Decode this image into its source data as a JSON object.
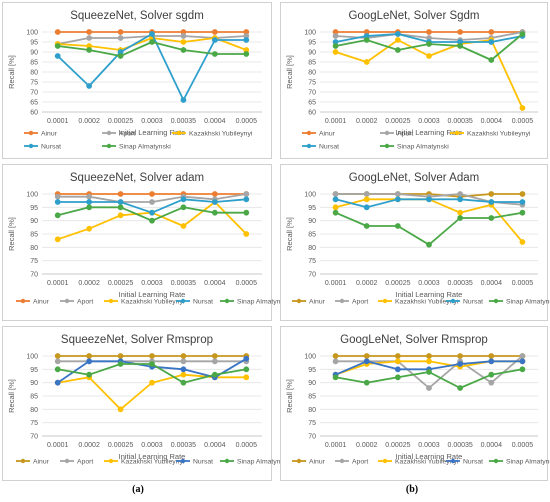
{
  "figure": {
    "label_a": "(a)",
    "label_b": "(b)"
  },
  "colors": {
    "Ainur": "#ED7D31",
    "Aport": "#A5A5A5",
    "Kazakhski Yubileynyi": "#FFC000",
    "Nursat": "#2E9FCB",
    "Sinap Almatynski": "#4AA847",
    "Ainur_alt": "#C7971E",
    "Nursat_alt": "#3A74C4"
  },
  "chart_data": [
    {
      "type": "line",
      "title": "SqueezeNet, Solver sgdm",
      "xlabel": "Initial Learning Rate",
      "ylabel": "Recall [%]",
      "categories": [
        "0.0001",
        "0.0002",
        "0.00025",
        "0.0003",
        "0.00035",
        "0.0004",
        "0.0005"
      ],
      "ylim": [
        60,
        100
      ],
      "yticks": [
        60,
        65,
        70,
        75,
        80,
        85,
        90,
        95,
        100
      ],
      "legend_position": "bottom",
      "series": [
        {
          "name": "Ainur",
          "values": [
            100,
            100,
            100,
            100,
            100,
            100,
            100
          ]
        },
        {
          "name": "Aport",
          "values": [
            94,
            97,
            97,
            98,
            98,
            97,
            98
          ]
        },
        {
          "name": "Kazakhski Yubileynyi",
          "values": [
            94,
            93,
            91,
            97,
            95,
            97,
            91
          ]
        },
        {
          "name": "Nursat",
          "values": [
            88,
            73,
            90,
            99,
            66,
            96,
            96
          ]
        },
        {
          "name": "Sinap Almatynski",
          "values": [
            93,
            91,
            88,
            95,
            91,
            89,
            89
          ]
        }
      ]
    },
    {
      "type": "line",
      "title": "GoogLeNet, Solver Sgdm",
      "xlabel": "Initial Learning Rate",
      "ylabel": "Recall [%]",
      "categories": [
        "0.0001",
        "0.0002",
        "0.00025",
        "0.0003",
        "0.00035",
        "0.0004",
        "0.0005"
      ],
      "ylim": [
        60,
        100
      ],
      "yticks": [
        60,
        65,
        70,
        75,
        80,
        85,
        90,
        95,
        100
      ],
      "legend_position": "bottom",
      "series": [
        {
          "name": "Ainur",
          "values": [
            100,
            100,
            100,
            100,
            100,
            100,
            100
          ]
        },
        {
          "name": "Aport",
          "values": [
            98,
            97,
            99,
            97,
            96,
            97,
            100
          ]
        },
        {
          "name": "Kazakhski Yubileynyi",
          "values": [
            90,
            85,
            96,
            88,
            94,
            96,
            62
          ]
        },
        {
          "name": "Nursat",
          "values": [
            95,
            98,
            99,
            95,
            95,
            95,
            98
          ]
        },
        {
          "name": "Sinap Almatynski",
          "values": [
            93,
            96,
            91,
            94,
            93,
            86,
            99
          ]
        }
      ]
    },
    {
      "type": "line",
      "title": "SqueezeNet, Solver adam",
      "xlabel": "Initial Learning Rate",
      "ylabel": "Recall [%]",
      "categories": [
        "0.0001",
        "0.0002",
        "0.00025",
        "0.0003",
        "0.00035",
        "0.0004",
        "0.0005"
      ],
      "ylim": [
        70,
        100
      ],
      "yticks": [
        70,
        75,
        80,
        85,
        90,
        95,
        100
      ],
      "legend_position": "bottom",
      "series": [
        {
          "name": "Ainur",
          "values": [
            100,
            100,
            100,
            100,
            100,
            100,
            100
          ]
        },
        {
          "name": "Aport",
          "values": [
            99,
            99,
            97,
            97,
            99,
            98,
            100
          ]
        },
        {
          "name": "Kazakhski Yubileynyi",
          "values": [
            83,
            87,
            92,
            93,
            88,
            97,
            85
          ]
        },
        {
          "name": "Nursat",
          "values": [
            97,
            97,
            97,
            93,
            98,
            97,
            98
          ]
        },
        {
          "name": "Sinap Almatynski",
          "values": [
            92,
            95,
            95,
            90,
            95,
            93,
            93
          ]
        }
      ]
    },
    {
      "type": "line",
      "title": "GoogLeNet, Solver Adam",
      "xlabel": "Initial Learning Rate",
      "ylabel": "Recall [%]",
      "categories": [
        "0.0001",
        "0.0002",
        "0.00025",
        "0.0003",
        "0.00035",
        "0.0004",
        "0.0005"
      ],
      "ylim": [
        70,
        100
      ],
      "yticks": [
        70,
        75,
        80,
        85,
        90,
        95,
        100
      ],
      "legend_position": "bottom",
      "series": [
        {
          "name": "Ainur",
          "values": [
            100,
            100,
            100,
            100,
            99,
            100,
            100
          ]
        },
        {
          "name": "Aport",
          "values": [
            100,
            100,
            100,
            99,
            100,
            97,
            96
          ]
        },
        {
          "name": "Kazakhski Yubileynyi",
          "values": [
            95,
            98,
            98,
            98,
            93,
            96,
            82
          ]
        },
        {
          "name": "Nursat",
          "values": [
            98,
            95,
            98,
            98,
            98,
            97,
            97
          ]
        },
        {
          "name": "Sinap Almatynski",
          "values": [
            93,
            88,
            88,
            81,
            91,
            91,
            93
          ]
        }
      ]
    },
    {
      "type": "line",
      "title": "SqueezeNet, Solver Rmsprop",
      "xlabel": "Initial Learning Rate",
      "ylabel": "Recall [%]",
      "categories": [
        "0.0001",
        "0.0002",
        "0.00025",
        "0.0003",
        "0.00035",
        "0.0004",
        "0.0005"
      ],
      "ylim": [
        70,
        100
      ],
      "yticks": [
        70,
        75,
        80,
        85,
        90,
        95,
        100
      ],
      "legend_position": "bottom",
      "series": [
        {
          "name": "Ainur",
          "values": [
            100,
            100,
            100,
            100,
            100,
            100,
            100
          ]
        },
        {
          "name": "Aport",
          "values": [
            98,
            98,
            98,
            98,
            98,
            98,
            98
          ]
        },
        {
          "name": "Kazakhski Yubileynyi",
          "values": [
            90,
            92,
            80,
            90,
            93,
            92,
            92
          ]
        },
        {
          "name": "Nursat",
          "values": [
            90,
            98,
            98,
            96,
            95,
            92,
            99
          ]
        },
        {
          "name": "Sinap Almatynski",
          "values": [
            95,
            93,
            97,
            97,
            90,
            93,
            95
          ]
        }
      ]
    },
    {
      "type": "line",
      "title": "GoogLeNet, Solver Rmsprop",
      "xlabel": "Initial Learning Rate",
      "ylabel": "Recall [%]",
      "categories": [
        "0.0001",
        "0.0002",
        "0.00025",
        "0.0003",
        "0.00035",
        "0.0004",
        "0.0005"
      ],
      "ylim": [
        70,
        100
      ],
      "yticks": [
        70,
        75,
        80,
        85,
        90,
        95,
        100
      ],
      "legend_position": "bottom",
      "series": [
        {
          "name": "Ainur",
          "values": [
            100,
            100,
            100,
            100,
            100,
            100,
            100
          ]
        },
        {
          "name": "Aport",
          "values": [
            98,
            98,
            98,
            88,
            98,
            90,
            100
          ]
        },
        {
          "name": "Kazakhski Yubileynyi",
          "values": [
            93,
            97,
            98,
            98,
            96,
            98,
            98
          ]
        },
        {
          "name": "Nursat",
          "values": [
            93,
            98,
            95,
            95,
            97,
            98,
            98
          ]
        },
        {
          "name": "Sinap Almatynski",
          "values": [
            92,
            90,
            92,
            94,
            88,
            93,
            95
          ]
        }
      ]
    }
  ]
}
